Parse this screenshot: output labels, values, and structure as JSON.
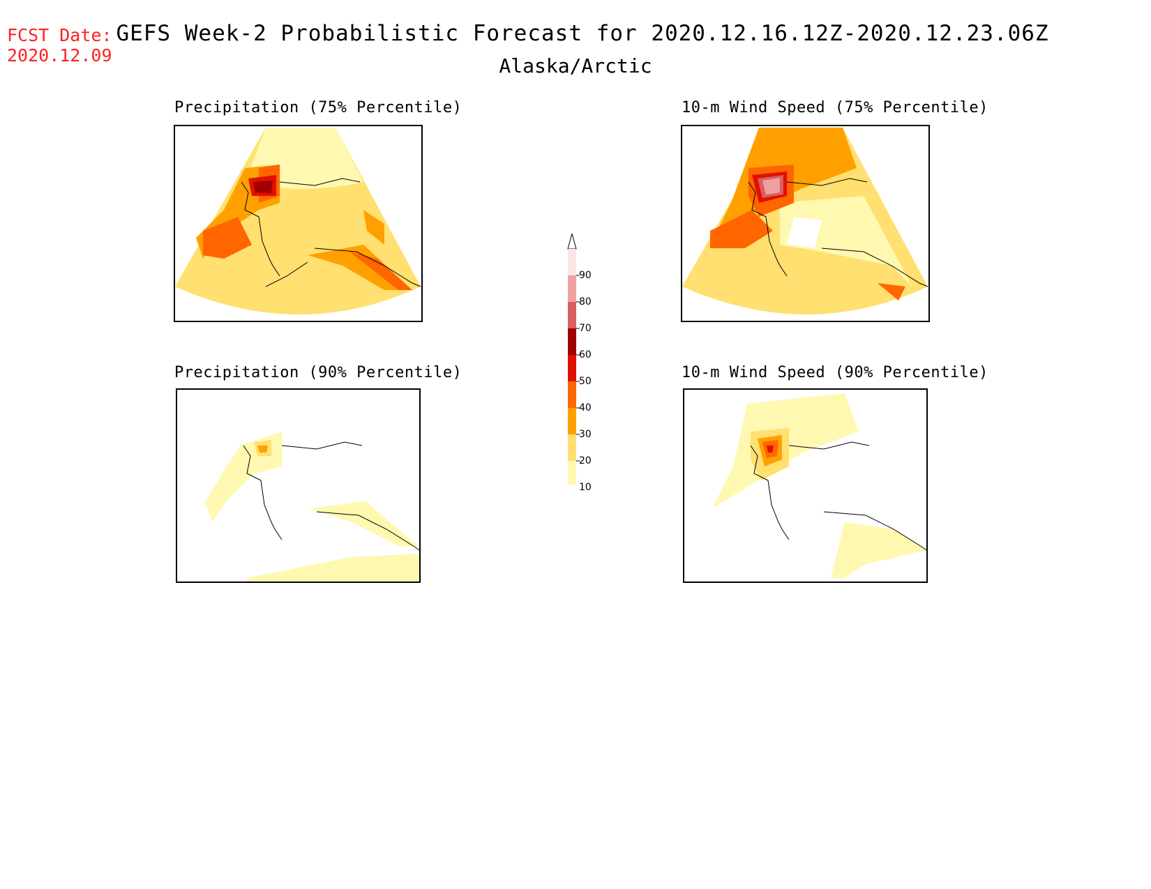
{
  "header": {
    "fcst_date_label": "FCST Date:",
    "fcst_date_value": "2020.12.09",
    "title": "GEFS Week-2 Probabilistic Forecast for 2020.12.16.12Z-2020.12.23.06Z",
    "subtitle": "Alaska/Arctic"
  },
  "panels": [
    {
      "id": "precip75",
      "title": "Precipitation (75% Percentile)"
    },
    {
      "id": "wind75",
      "title": "10-m Wind Speed (75% Percentile)"
    },
    {
      "id": "precip90",
      "title": "Precipitation (90% Percentile)"
    },
    {
      "id": "wind90",
      "title": "10-m Wind Speed (90% Percentile)"
    }
  ],
  "colorbar": {
    "levels": [
      "90",
      "80",
      "70",
      "60",
      "50",
      "40",
      "30",
      "20",
      "10"
    ],
    "colors": [
      "#fbe6e6",
      "#f0a0a0",
      "#d86060",
      "#a00000",
      "#e01000",
      "#ff6600",
      "#ffa000",
      "#ffe070",
      "#fff8b0"
    ]
  }
}
